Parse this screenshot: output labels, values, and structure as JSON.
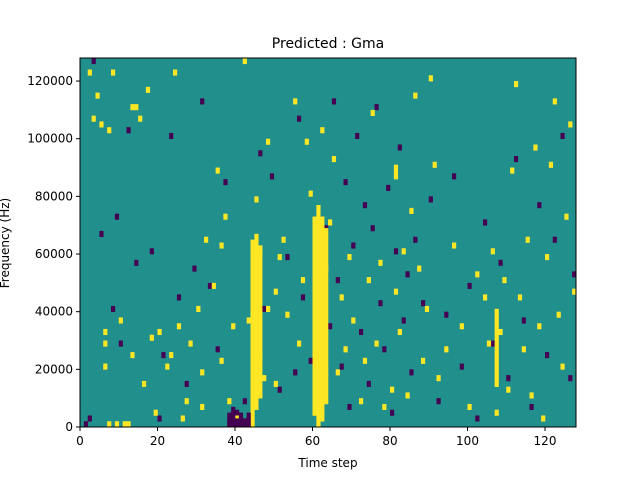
{
  "chart_data": {
    "type": "heatmap",
    "title": "Predicted : Gma",
    "xlabel": "Time step",
    "ylabel": "Frequency (Hz)",
    "xlim": [
      0,
      128
    ],
    "ylim": [
      0,
      128000
    ],
    "xticks": [
      "0",
      "20",
      "40",
      "60",
      "80",
      "100",
      "120"
    ],
    "yticks": [
      "0",
      "20000",
      "40000",
      "60000",
      "80000",
      "100000",
      "120000"
    ],
    "grid": false,
    "legend": "none",
    "colormap": "viridis",
    "colors": {
      "background": "#21908d",
      "high": "#fde725",
      "low": "#440154"
    },
    "n_time_steps": 128,
    "n_freq_bins": 128,
    "bin_hz": 1000,
    "background_level": "mid",
    "yellow_cells": [
      [
        2,
        122000
      ],
      [
        3,
        106000
      ],
      [
        4,
        114000
      ],
      [
        5,
        104000
      ],
      [
        6,
        32000
      ],
      [
        6,
        28000
      ],
      [
        6,
        20000
      ],
      [
        7,
        102000
      ],
      [
        7,
        0
      ],
      [
        8,
        122000
      ],
      [
        9,
        0
      ],
      [
        10,
        36000
      ],
      [
        11,
        0
      ],
      [
        12,
        0
      ],
      [
        13,
        110000
      ],
      [
        13,
        24000
      ],
      [
        14,
        110000
      ],
      [
        15,
        106000
      ],
      [
        16,
        14000
      ],
      [
        17,
        116000
      ],
      [
        18,
        30000
      ],
      [
        19,
        4000
      ],
      [
        20,
        32000
      ],
      [
        22,
        20000
      ],
      [
        23,
        24000
      ],
      [
        24,
        122000
      ],
      [
        25,
        34000
      ],
      [
        26,
        2000
      ],
      [
        27,
        8000
      ],
      [
        28,
        28000
      ],
      [
        30,
        40000
      ],
      [
        31,
        18000
      ],
      [
        31,
        6000
      ],
      [
        32,
        64000
      ],
      [
        34,
        48000
      ],
      [
        35,
        88000
      ],
      [
        36,
        62000
      ],
      [
        36,
        22000
      ],
      [
        37,
        72000
      ],
      [
        38,
        8000
      ],
      [
        39,
        34000
      ],
      [
        40,
        2000
      ],
      [
        42,
        126000
      ],
      [
        43,
        36000
      ],
      [
        44,
        40000
      ],
      [
        45,
        78000
      ],
      [
        46,
        60000
      ],
      [
        46,
        24000
      ],
      [
        47,
        16000
      ],
      [
        48,
        98000
      ],
      [
        48,
        40000
      ],
      [
        50,
        46000
      ],
      [
        50,
        14000
      ],
      [
        51,
        58000
      ],
      [
        52,
        64000
      ],
      [
        53,
        38000
      ],
      [
        55,
        112000
      ],
      [
        56,
        28000
      ],
      [
        57,
        50000
      ],
      [
        58,
        98000
      ],
      [
        59,
        80000
      ],
      [
        60,
        44000
      ],
      [
        61,
        30000
      ],
      [
        62,
        102000
      ],
      [
        63,
        54000
      ],
      [
        64,
        70000
      ],
      [
        65,
        92000
      ],
      [
        66,
        18000
      ],
      [
        67,
        44000
      ],
      [
        68,
        26000
      ],
      [
        69,
        58000
      ],
      [
        70,
        36000
      ],
      [
        72,
        8000
      ],
      [
        73,
        22000
      ],
      [
        74,
        50000
      ],
      [
        75,
        108000
      ],
      [
        76,
        28000
      ],
      [
        77,
        56000
      ],
      [
        78,
        6000
      ],
      [
        80,
        12000
      ],
      [
        81,
        46000
      ],
      [
        82,
        32000
      ],
      [
        83,
        60000
      ],
      [
        84,
        10000
      ],
      [
        85,
        74000
      ],
      [
        86,
        114000
      ],
      [
        87,
        54000
      ],
      [
        88,
        22000
      ],
      [
        89,
        40000
      ],
      [
        90,
        120000
      ],
      [
        91,
        90000
      ],
      [
        92,
        16000
      ],
      [
        94,
        26000
      ],
      [
        96,
        62000
      ],
      [
        98,
        34000
      ],
      [
        100,
        6000
      ],
      [
        102,
        52000
      ],
      [
        104,
        44000
      ],
      [
        105,
        28000
      ],
      [
        106,
        60000
      ],
      [
        107,
        4000
      ],
      [
        108,
        32000
      ],
      [
        109,
        50000
      ],
      [
        110,
        12000
      ],
      [
        111,
        88000
      ],
      [
        112,
        118000
      ],
      [
        113,
        44000
      ],
      [
        114,
        26000
      ],
      [
        115,
        64000
      ],
      [
        116,
        10000
      ],
      [
        117,
        96000
      ],
      [
        118,
        34000
      ],
      [
        119,
        2000
      ],
      [
        120,
        58000
      ],
      [
        121,
        90000
      ],
      [
        122,
        112000
      ],
      [
        123,
        38000
      ],
      [
        124,
        20000
      ],
      [
        125,
        72000
      ],
      [
        126,
        104000
      ],
      [
        127,
        46000
      ]
    ],
    "purple_cells": [
      [
        1,
        0
      ],
      [
        2,
        2000
      ],
      [
        3,
        126000
      ],
      [
        5,
        66000
      ],
      [
        8,
        40000
      ],
      [
        9,
        72000
      ],
      [
        10,
        28000
      ],
      [
        12,
        102000
      ],
      [
        14,
        56000
      ],
      [
        16,
        14000
      ],
      [
        18,
        60000
      ],
      [
        20,
        2000
      ],
      [
        21,
        24000
      ],
      [
        23,
        100000
      ],
      [
        25,
        44000
      ],
      [
        27,
        14000
      ],
      [
        29,
        54000
      ],
      [
        31,
        112000
      ],
      [
        33,
        48000
      ],
      [
        35,
        26000
      ],
      [
        37,
        84000
      ],
      [
        38,
        0
      ],
      [
        39,
        2000
      ],
      [
        40,
        4000
      ],
      [
        41,
        0
      ],
      [
        42,
        8000
      ],
      [
        43,
        2000
      ],
      [
        44,
        20000
      ],
      [
        46,
        94000
      ],
      [
        47,
        40000
      ],
      [
        49,
        86000
      ],
      [
        51,
        12000
      ],
      [
        53,
        58000
      ],
      [
        55,
        18000
      ],
      [
        56,
        106000
      ],
      [
        57,
        44000
      ],
      [
        59,
        22000
      ],
      [
        61,
        8000
      ],
      [
        63,
        68000
      ],
      [
        64,
        34000
      ],
      [
        65,
        112000
      ],
      [
        66,
        50000
      ],
      [
        67,
        20000
      ],
      [
        68,
        84000
      ],
      [
        69,
        6000
      ],
      [
        70,
        62000
      ],
      [
        71,
        100000
      ],
      [
        72,
        32000
      ],
      [
        73,
        76000
      ],
      [
        74,
        14000
      ],
      [
        75,
        68000
      ],
      [
        76,
        110000
      ],
      [
        77,
        42000
      ],
      [
        78,
        26000
      ],
      [
        79,
        82000
      ],
      [
        80,
        4000
      ],
      [
        81,
        60000
      ],
      [
        82,
        96000
      ],
      [
        83,
        36000
      ],
      [
        84,
        52000
      ],
      [
        85,
        18000
      ],
      [
        86,
        64000
      ],
      [
        88,
        42000
      ],
      [
        90,
        78000
      ],
      [
        92,
        8000
      ],
      [
        94,
        38000
      ],
      [
        96,
        86000
      ],
      [
        98,
        20000
      ],
      [
        100,
        48000
      ],
      [
        102,
        2000
      ],
      [
        104,
        70000
      ],
      [
        106,
        28000
      ],
      [
        108,
        56000
      ],
      [
        110,
        16000
      ],
      [
        112,
        92000
      ],
      [
        114,
        36000
      ],
      [
        116,
        6000
      ],
      [
        118,
        76000
      ],
      [
        120,
        24000
      ],
      [
        122,
        64000
      ],
      [
        124,
        100000
      ],
      [
        126,
        16000
      ],
      [
        127,
        52000
      ]
    ],
    "yellow_runs": [
      {
        "x": 44,
        "y0": 0,
        "y1": 64000
      },
      {
        "x": 45,
        "y0": 6000,
        "y1": 66000
      },
      {
        "x": 46,
        "y0": 10000,
        "y1": 62000
      },
      {
        "x": 60,
        "y0": 4000,
        "y1": 72000
      },
      {
        "x": 61,
        "y0": 0,
        "y1": 76000
      },
      {
        "x": 62,
        "y0": 2000,
        "y1": 72000
      },
      {
        "x": 63,
        "y0": 8000,
        "y1": 68000
      },
      {
        "x": 81,
        "y0": 86000,
        "y1": 90000
      },
      {
        "x": 107,
        "y0": 14000,
        "y1": 40000
      }
    ],
    "purple_runs": [
      {
        "x": 38,
        "y0": 0,
        "y1": 4000
      },
      {
        "x": 39,
        "y0": 0,
        "y1": 6000
      },
      {
        "x": 40,
        "y0": 0,
        "y1": 2000
      },
      {
        "x": 41,
        "y0": 0,
        "y1": 4000
      },
      {
        "x": 42,
        "y0": 0,
        "y1": 2000
      },
      {
        "x": 43,
        "y0": 0,
        "y1": 4000
      }
    ]
  }
}
